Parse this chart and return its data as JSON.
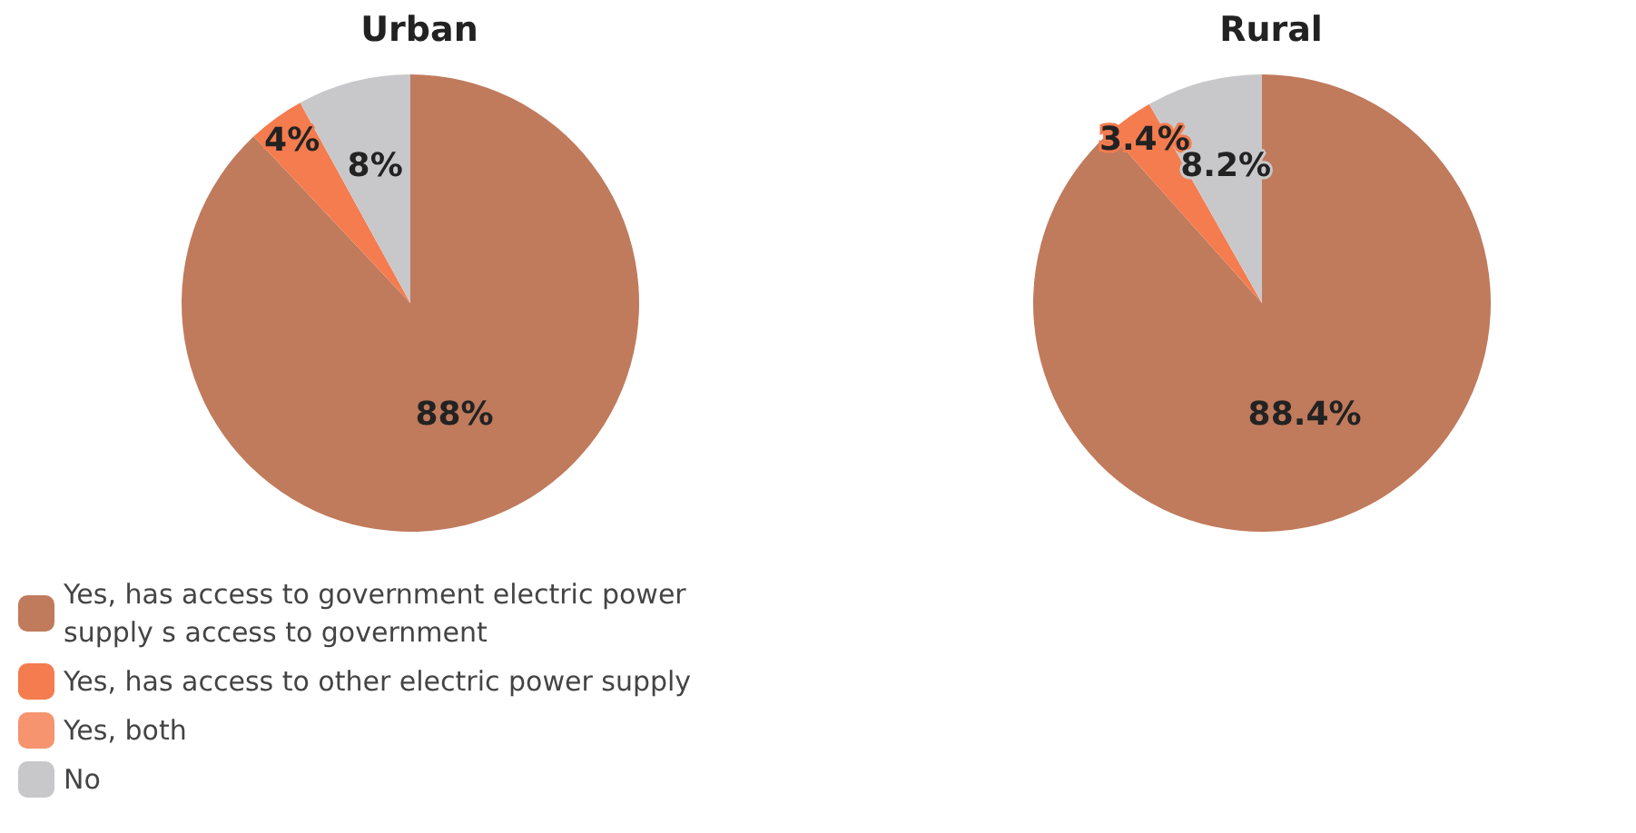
{
  "chart_data": {
    "type": "pie",
    "categories": [
      "Yes, has access to government electric power supply s access to government",
      "Yes, has access to other electric power supply",
      "Yes, both",
      "No"
    ],
    "colors": [
      "#c07a5c",
      "#f47c4f",
      "#f5946e",
      "#c8c8ca"
    ],
    "legend": "bottom left",
    "series": [
      {
        "name": "Urban",
        "values": [
          88,
          4,
          0,
          8
        ],
        "value_labels": [
          "88%",
          "4%",
          null,
          "8%"
        ]
      },
      {
        "name": "Rural",
        "values": [
          88.4,
          3.4,
          0,
          8.2
        ],
        "value_labels": [
          "88.4%",
          "3.4%",
          null,
          "8.2%"
        ]
      }
    ]
  }
}
